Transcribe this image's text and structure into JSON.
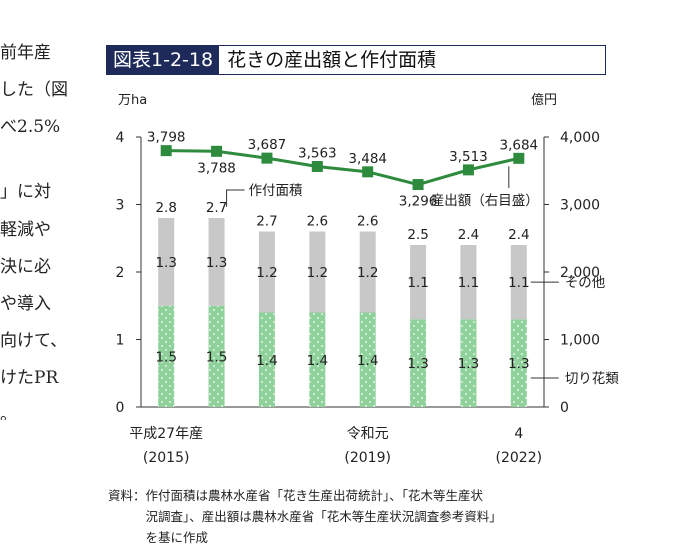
{
  "left_text_fragments": [
    "前年産",
    "した（図",
    "べ2.5%",
    "」に対",
    "軽減や",
    "決に必",
    "や導入",
    "向けて、",
    "けたPR",
    "。"
  ],
  "figure": {
    "tag": "図表1-2-18",
    "title": "花きの産出額と作付面積"
  },
  "chart_data": {
    "type": "bar+line",
    "left_axis_unit": "万ha",
    "right_axis_unit": "億円",
    "left_ticks": [
      "0",
      "1",
      "2",
      "3",
      "4"
    ],
    "right_ticks": [
      "0",
      "1,000",
      "2,000",
      "3,000",
      "4,000"
    ],
    "ylim_left": [
      0,
      4
    ],
    "ylim_right": [
      0,
      4000
    ],
    "bar_series": [
      {
        "name": "切り花類",
        "values": [
          1.5,
          1.5,
          1.4,
          1.4,
          1.4,
          1.3,
          1.3,
          1.3
        ],
        "labels": [
          "1.5",
          "1.5",
          "1.4",
          "1.4",
          "1.4",
          "1.3",
          "1.3",
          "1.3"
        ],
        "color": "#8fd19a"
      },
      {
        "name": "その他",
        "values": [
          1.3,
          1.3,
          1.2,
          1.2,
          1.2,
          1.1,
          1.1,
          1.1
        ],
        "labels": [
          "1.3",
          "1.3",
          "1.2",
          "1.2",
          "1.2",
          "1.1",
          "1.1",
          "1.1"
        ],
        "color": "#c8c8c8"
      }
    ],
    "bar_totals": [
      "2.8",
      "2.7",
      "2.7",
      "2.6",
      "2.6",
      "2.5",
      "2.4",
      "2.4"
    ],
    "line_series": {
      "name": "産出額（右目盛）",
      "values": [
        3798,
        3788,
        3687,
        3563,
        3484,
        3296,
        3513,
        3684
      ],
      "labels": [
        "3,798",
        "3,788",
        "3,687",
        "3,563",
        "3,484",
        "3,296",
        "3,513",
        "3,684"
      ],
      "color": "#2e8b3e"
    },
    "bar_annotation": "作付面積",
    "x_labels": [
      {
        "index": 0,
        "line1": "平成27年産",
        "line2": "(2015)"
      },
      {
        "index": 4,
        "line1": "令和元",
        "line2": "(2019)"
      },
      {
        "index": 7,
        "line1": "4",
        "line2": "(2022)"
      }
    ]
  },
  "source": [
    "資料：作付面積は農林水産省「花き生産出荷統計」、「花木等生産状",
    "　　　況調査」、産出額は農林水産省「花木等生産状況調査参考資料」",
    "　　　を基に作成"
  ]
}
